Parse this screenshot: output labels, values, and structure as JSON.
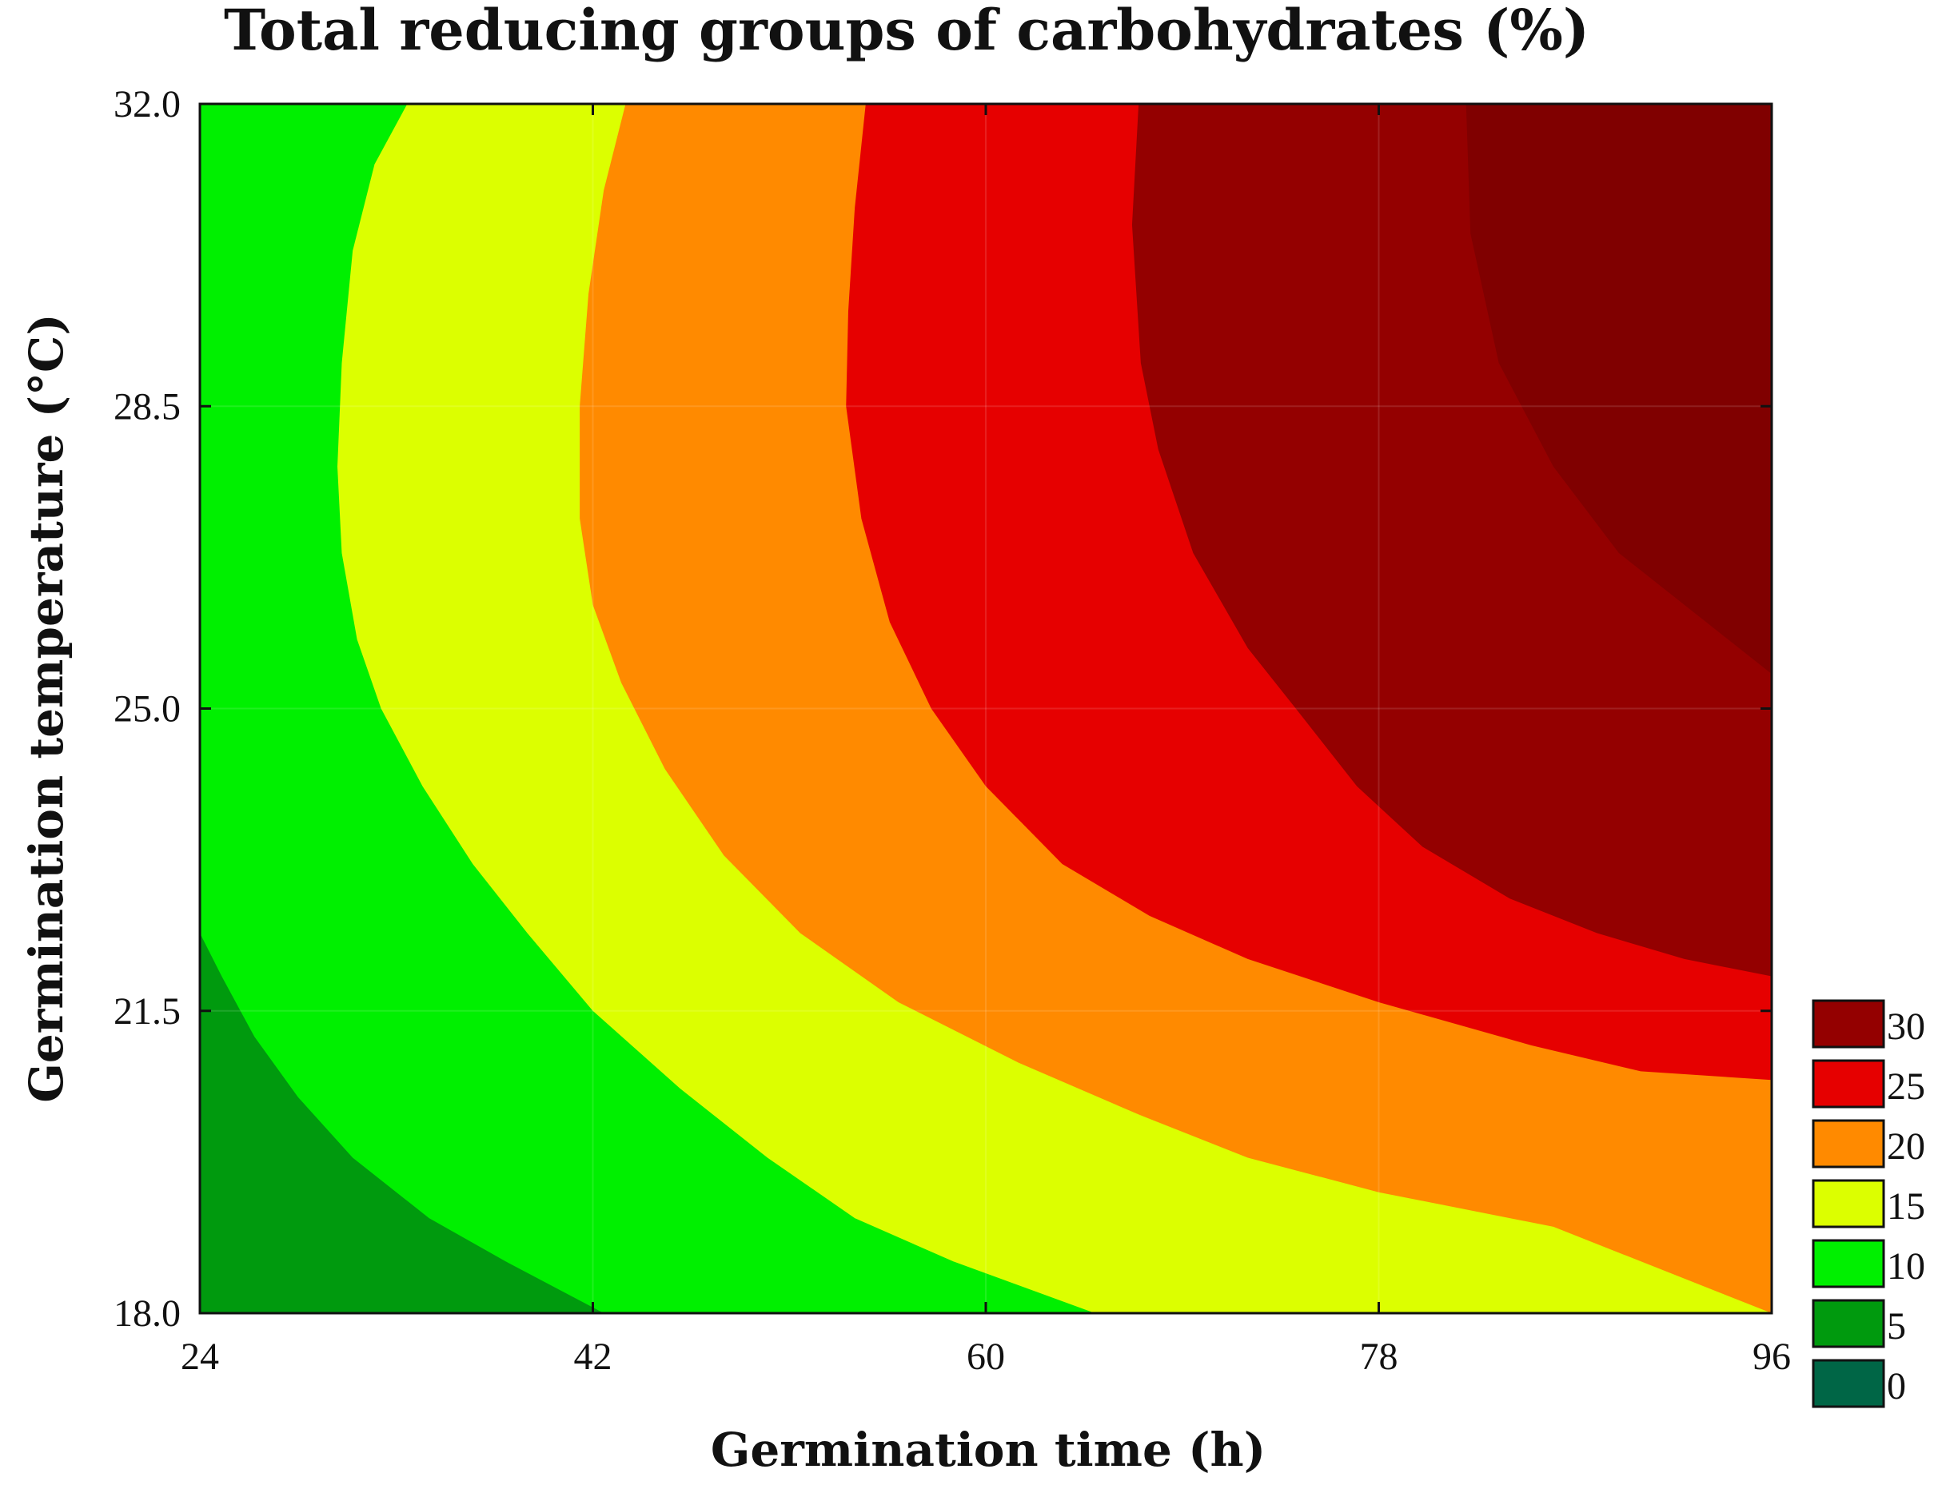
{
  "chart_data": {
    "type": "contour",
    "title": "Total reducing groups of carbohydrates (%)",
    "xlabel": "Germination time (h)",
    "ylabel": "Germination temperature (°C)",
    "xlim": [
      24,
      96
    ],
    "ylim": [
      18.0,
      32.0
    ],
    "xticks": [
      24,
      42,
      60,
      78,
      96
    ],
    "xtick_labels": [
      "24",
      "42",
      "60",
      "78",
      "96"
    ],
    "yticks": [
      18.0,
      21.5,
      25.0,
      28.5,
      32.0
    ],
    "ytick_labels": [
      "18.0",
      "21.5",
      "25.0",
      "28.5",
      "32.0"
    ],
    "grid": true,
    "legend_position": "right",
    "levels": [
      {
        "value": 0,
        "label": "0",
        "color": "#006646"
      },
      {
        "value": 5,
        "label": "5",
        "color": "#009a0e"
      },
      {
        "value": 10,
        "label": "10",
        "color": "#00f000"
      },
      {
        "value": 15,
        "label": "15",
        "color": "#dcff00"
      },
      {
        "value": 20,
        "label": "20",
        "color": "#ff8a00"
      },
      {
        "value": 25,
        "label": "25",
        "color": "#e60000"
      },
      {
        "value": 30,
        "label": "30",
        "color": "#940000"
      }
    ],
    "top_band_color": "#800000",
    "contours": [
      {
        "level": 5,
        "points": [
          [
            24,
            22.4
          ],
          [
            25,
            21.9
          ],
          [
            26.5,
            21.2
          ],
          [
            28.5,
            20.5
          ],
          [
            31,
            19.8
          ],
          [
            34.5,
            19.1
          ],
          [
            38,
            18.6
          ],
          [
            42.5,
            18.0
          ]
        ]
      },
      {
        "level": 10,
        "points": [
          [
            33.5,
            32.0
          ],
          [
            32,
            31.3
          ],
          [
            31,
            30.3
          ],
          [
            30.5,
            29.0
          ],
          [
            30.3,
            27.8
          ],
          [
            30.5,
            26.8
          ],
          [
            31.2,
            25.8
          ],
          [
            32.3,
            25.0
          ],
          [
            34.2,
            24.1
          ],
          [
            36.5,
            23.2
          ],
          [
            39,
            22.4
          ],
          [
            42,
            21.5
          ],
          [
            46,
            20.6
          ],
          [
            50,
            19.8
          ],
          [
            54,
            19.1
          ],
          [
            58.5,
            18.6
          ],
          [
            65,
            18.0
          ]
        ]
      },
      {
        "level": 15,
        "points": [
          [
            43.5,
            32.0
          ],
          [
            42.5,
            31.0
          ],
          [
            41.8,
            29.8
          ],
          [
            41.4,
            28.5
          ],
          [
            41.4,
            27.2
          ],
          [
            42,
            26.2
          ],
          [
            43.3,
            25.3
          ],
          [
            45.3,
            24.3
          ],
          [
            48,
            23.3
          ],
          [
            51.5,
            22.4
          ],
          [
            56,
            21.6
          ],
          [
            61.5,
            20.9
          ],
          [
            67,
            20.3
          ],
          [
            72,
            19.8
          ],
          [
            78,
            19.4
          ],
          [
            86,
            19.0
          ],
          [
            96,
            18.0
          ]
        ]
      },
      {
        "level": 20,
        "points": [
          [
            54.5,
            32.0
          ],
          [
            54,
            30.8
          ],
          [
            53.7,
            29.6
          ],
          [
            53.6,
            28.5
          ],
          [
            54.3,
            27.2
          ],
          [
            55.6,
            26.0
          ],
          [
            57.5,
            25.0
          ],
          [
            60,
            24.1
          ],
          [
            63.5,
            23.2
          ],
          [
            67.5,
            22.6
          ],
          [
            72,
            22.1
          ],
          [
            78,
            21.6
          ],
          [
            85,
            21.1
          ],
          [
            90,
            20.8
          ],
          [
            96,
            20.7
          ]
        ]
      },
      {
        "level": 25,
        "points": [
          [
            67,
            32.0
          ],
          [
            66.7,
            30.6
          ],
          [
            67.1,
            29.0
          ],
          [
            67.9,
            28.0
          ],
          [
            69.5,
            26.8
          ],
          [
            72,
            25.7
          ],
          [
            74.2,
            25.0
          ],
          [
            77,
            24.1
          ],
          [
            80,
            23.4
          ],
          [
            84,
            22.8
          ],
          [
            88,
            22.4
          ],
          [
            92,
            22.1
          ],
          [
            96,
            21.9
          ]
        ]
      },
      {
        "level": 30,
        "points": [
          [
            82,
            32.0
          ],
          [
            82.2,
            30.5
          ],
          [
            83.5,
            29.0
          ],
          [
            86,
            27.8
          ],
          [
            89,
            26.8
          ],
          [
            93,
            26.0
          ],
          [
            96,
            25.4
          ]
        ]
      }
    ]
  }
}
